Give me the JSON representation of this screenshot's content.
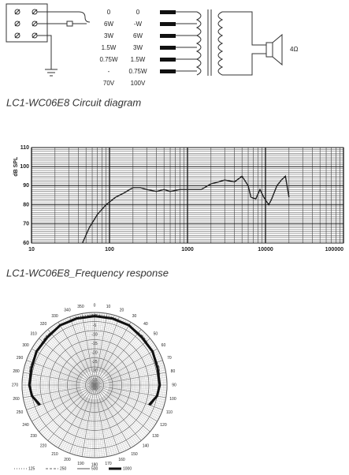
{
  "circuit": {
    "col1": [
      "0",
      "6W",
      "3W",
      "1.5W",
      "0.75W",
      "-",
      "70V"
    ],
    "col2": [
      "0",
      "-W",
      "6W",
      "3W",
      "1.5W",
      "0.75W",
      "100V"
    ],
    "impedance": "4Ω"
  },
  "captions": [
    "LC1-WC06E8 Circuit diagram",
    "LC1-WC06E8_Frequency response"
  ],
  "chart_data": [
    {
      "type": "line",
      "xscale": "log",
      "ylabel": "dB SPL",
      "color": "#222222",
      "x": [
        45,
        55,
        70,
        90,
        120,
        150,
        200,
        250,
        300,
        400,
        500,
        600,
        800,
        1000,
        1500,
        2000,
        2500,
        3000,
        4000,
        5000,
        6000,
        6500,
        7500,
        8500,
        9500,
        11000,
        12000,
        14000,
        16000,
        18000,
        20000
      ],
      "values": [
        60,
        68,
        75,
        80,
        84,
        86,
        89,
        89,
        88,
        87,
        88,
        87,
        88,
        88,
        88,
        91,
        92,
        93,
        92,
        95,
        90,
        84,
        83,
        88,
        84,
        80,
        83,
        90,
        93,
        95,
        84
      ],
      "xlim": [
        10,
        100000
      ],
      "xticks": [
        10,
        100,
        1000,
        10000,
        100000
      ],
      "ylim": [
        60,
        110
      ],
      "yticks": [
        60,
        70,
        80,
        90,
        100,
        110
      ],
      "grid": true
    },
    {
      "type": "polar",
      "angles": [
        -110,
        -100,
        -90,
        -75,
        -60,
        -45,
        -30,
        -15,
        0,
        15,
        30,
        45,
        60,
        75,
        90,
        100,
        110
      ],
      "series": [
        {
          "name": "125",
          "color": "#666666",
          "dash": "1 2",
          "width": 1,
          "values": [
            -7,
            -5,
            -4,
            -3,
            -3,
            -2,
            -2,
            -1,
            -1,
            -1,
            -2,
            -2,
            -3,
            -3,
            -4,
            -5,
            -7
          ]
        },
        {
          "name": "250",
          "color": "#666666",
          "dash": "3 2",
          "width": 1,
          "values": [
            -7,
            -5,
            -4,
            -3,
            -3,
            -2,
            -2,
            -2,
            -1,
            -2,
            -2,
            -2,
            -3,
            -3,
            -4,
            -5,
            -7
          ]
        },
        {
          "name": "500",
          "color": "#555555",
          "dash": "none",
          "width": 1,
          "values": [
            -7,
            -5,
            -4,
            -4,
            -3,
            -3,
            -2,
            -2,
            -2,
            -2,
            -2,
            -3,
            -3,
            -4,
            -4,
            -5,
            -7
          ]
        },
        {
          "name": "1000",
          "color": "#111111",
          "dash": "none",
          "width": 3,
          "values": [
            -8,
            -5,
            -4,
            -4,
            -3,
            -3,
            -2,
            -2,
            -2,
            -2,
            -2,
            -3,
            -3,
            -4,
            -4,
            -5,
            -8
          ]
        }
      ],
      "rlim": [
        -40,
        0
      ],
      "rticks": [
        0,
        -5,
        -10,
        -15,
        -20,
        -25,
        -30,
        -35,
        -40
      ],
      "angle_ticks": [
        0,
        10,
        20,
        30,
        40,
        50,
        60,
        70,
        80,
        90,
        100,
        110,
        120,
        130,
        140,
        150,
        160,
        170,
        180,
        190,
        200,
        210,
        220,
        230,
        240,
        250,
        260,
        270,
        280,
        290,
        300,
        310,
        320,
        330,
        340,
        350
      ]
    }
  ]
}
